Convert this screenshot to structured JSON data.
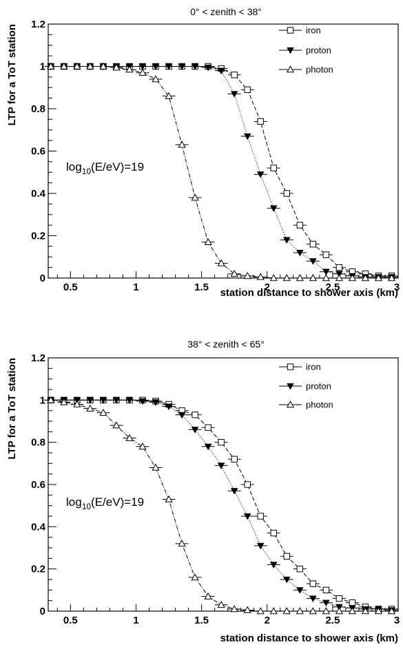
{
  "chart_data": [
    {
      "type": "scatter",
      "title": "0° < zenith < 38°",
      "xlabel": "station distance to shower axis (km)",
      "ylabel": "LTP for a ToT station",
      "xlim": [
        0.33,
        3.0
      ],
      "ylim": [
        0,
        1.2
      ],
      "xticks": [
        0.5,
        1,
        1.5,
        2,
        2.5,
        3
      ],
      "xtick_labels": [
        "0.5",
        "1",
        "1.5",
        "2",
        "2.5",
        "3"
      ],
      "yticks": [
        0,
        0.2,
        0.4,
        0.6,
        0.8,
        1,
        1.2
      ],
      "ytick_labels": [
        "0",
        "0.2",
        "0.4",
        "0.6",
        "0.8",
        "1",
        "1.2"
      ],
      "grid": false,
      "legend_position": "top-right",
      "annotation": {
        "base": "log",
        "sub": "10",
        "rest": "(E/eV)=19"
      },
      "series": [
        {
          "name": "iron",
          "marker": "open-square",
          "line": "dashed",
          "x": [
            0.35,
            0.45,
            0.55,
            0.65,
            0.75,
            0.85,
            0.95,
            1.05,
            1.15,
            1.25,
            1.35,
            1.45,
            1.55,
            1.65,
            1.75,
            1.85,
            1.95,
            2.05,
            2.15,
            2.25,
            2.35,
            2.45,
            2.55,
            2.65,
            2.75,
            2.85,
            2.95
          ],
          "y": [
            1,
            1,
            1,
            1,
            1,
            1,
            1,
            1,
            1,
            1,
            1,
            1,
            1,
            0.99,
            0.96,
            0.89,
            0.74,
            0.52,
            0.4,
            0.25,
            0.16,
            0.11,
            0.05,
            0.03,
            0.02,
            0.01,
            0.01
          ]
        },
        {
          "name": "proton",
          "marker": "filled-triangle-down",
          "line": "dotted",
          "x": [
            0.35,
            0.45,
            0.55,
            0.65,
            0.75,
            0.85,
            0.95,
            1.05,
            1.15,
            1.25,
            1.35,
            1.45,
            1.55,
            1.65,
            1.75,
            1.85,
            1.95,
            2.05,
            2.15,
            2.25,
            2.35,
            2.45,
            2.55,
            2.65,
            2.75,
            2.85,
            2.95
          ],
          "y": [
            1,
            1,
            1,
            1,
            1,
            1,
            1,
            1,
            1,
            1,
            1,
            1,
            0.995,
            0.98,
            0.87,
            0.67,
            0.49,
            0.33,
            0.18,
            0.12,
            0.08,
            0.03,
            0.02,
            0.01,
            0.005,
            0.005,
            0.005
          ]
        },
        {
          "name": "photon",
          "marker": "open-triangle-up",
          "line": "dashdot",
          "x": [
            0.35,
            0.45,
            0.55,
            0.65,
            0.75,
            0.85,
            0.95,
            1.05,
            1.15,
            1.25,
            1.35,
            1.45,
            1.55,
            1.65,
            1.75,
            1.85,
            1.95,
            2.05,
            2.15,
            2.25,
            2.35,
            2.45,
            2.55,
            2.65,
            2.75,
            2.85,
            2.95
          ],
          "y": [
            1,
            1,
            1,
            1,
            1,
            0.995,
            0.985,
            0.97,
            0.94,
            0.86,
            0.63,
            0.38,
            0.17,
            0.07,
            0.02,
            0.01,
            0.005,
            0,
            0,
            0,
            0,
            0,
            0,
            0,
            0,
            0,
            0
          ]
        }
      ]
    },
    {
      "type": "scatter",
      "title": "38° < zenith < 65°",
      "xlabel": "station distance to shower axis (km)",
      "ylabel": "LTP for a ToT station",
      "xlim": [
        0.33,
        3.0
      ],
      "ylim": [
        0,
        1.2
      ],
      "xticks": [
        0.5,
        1,
        1.5,
        2,
        2.5,
        3
      ],
      "xtick_labels": [
        "0.5",
        "1",
        "1.5",
        "2",
        "2.5",
        "3"
      ],
      "yticks": [
        0,
        0.2,
        0.4,
        0.6,
        0.8,
        1,
        1.2
      ],
      "ytick_labels": [
        "0",
        "0.2",
        "0.4",
        "0.6",
        "0.8",
        "1",
        "1.2"
      ],
      "grid": false,
      "legend_position": "top-right",
      "annotation": {
        "base": "log",
        "sub": "10",
        "rest": "(E/eV)=19"
      },
      "series": [
        {
          "name": "iron",
          "marker": "open-square",
          "line": "dashed",
          "x": [
            0.35,
            0.45,
            0.55,
            0.65,
            0.75,
            0.85,
            0.95,
            1.05,
            1.15,
            1.25,
            1.35,
            1.45,
            1.55,
            1.65,
            1.75,
            1.85,
            1.95,
            2.05,
            2.15,
            2.25,
            2.35,
            2.45,
            2.55,
            2.65,
            2.75,
            2.85,
            2.95
          ],
          "y": [
            1,
            1,
            1,
            1,
            1,
            1,
            1,
            1,
            0.995,
            0.98,
            0.95,
            0.93,
            0.87,
            0.8,
            0.72,
            0.6,
            0.45,
            0.37,
            0.26,
            0.2,
            0.13,
            0.1,
            0.06,
            0.04,
            0.02,
            0.01,
            0.01
          ]
        },
        {
          "name": "proton",
          "marker": "filled-triangle-down",
          "line": "dotted",
          "x": [
            0.35,
            0.45,
            0.55,
            0.65,
            0.75,
            0.85,
            0.95,
            1.05,
            1.15,
            1.25,
            1.35,
            1.45,
            1.55,
            1.65,
            1.75,
            1.85,
            1.95,
            2.05,
            2.15,
            2.25,
            2.35,
            2.45,
            2.55,
            2.65,
            2.75,
            2.85,
            2.95
          ],
          "y": [
            1,
            1,
            1,
            1,
            1,
            1,
            1,
            0.995,
            0.99,
            0.97,
            0.93,
            0.86,
            0.78,
            0.69,
            0.57,
            0.45,
            0.31,
            0.22,
            0.15,
            0.1,
            0.06,
            0.04,
            0.02,
            0.015,
            0.01,
            0.01,
            0.005
          ]
        },
        {
          "name": "photon",
          "marker": "open-triangle-up",
          "line": "dashdot",
          "x": [
            0.35,
            0.45,
            0.55,
            0.65,
            0.75,
            0.85,
            0.95,
            1.05,
            1.15,
            1.25,
            1.35,
            1.45,
            1.55,
            1.65,
            1.75,
            1.85,
            1.95,
            2.05,
            2.15,
            2.25,
            2.35,
            2.45,
            2.55,
            2.65,
            2.75,
            2.85,
            2.95
          ],
          "y": [
            1,
            0.99,
            0.98,
            0.96,
            0.94,
            0.88,
            0.82,
            0.78,
            0.68,
            0.53,
            0.32,
            0.16,
            0.07,
            0.03,
            0.01,
            0.005,
            0,
            0,
            0,
            0,
            0,
            0,
            0,
            0,
            0,
            0,
            0
          ]
        }
      ]
    }
  ]
}
